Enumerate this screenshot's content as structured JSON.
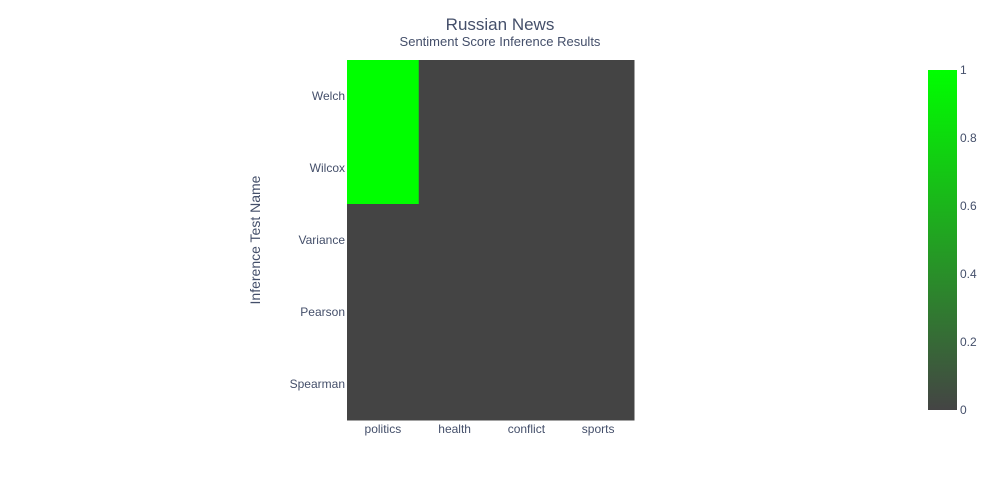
{
  "chart_data": {
    "type": "heatmap",
    "title": "Russian News",
    "subtitle": "Sentiment Score Inference Results",
    "xlabel": "",
    "ylabel": "Inference Test Name",
    "x_categories": [
      "politics",
      "health",
      "conflict",
      "sports"
    ],
    "y_categories": [
      "Welch",
      "Wilcox",
      "Variance",
      "Pearson",
      "Spearman"
    ],
    "z": [
      [
        1,
        0,
        0,
        0
      ],
      [
        1,
        0,
        0,
        0
      ],
      [
        0,
        0,
        0,
        0
      ],
      [
        0,
        0,
        0,
        0
      ],
      [
        0,
        0,
        0,
        0
      ]
    ],
    "colorscale": {
      "min_color": "#444444",
      "max_color": "#00ff00"
    },
    "colorbar": {
      "range": [
        0,
        1
      ],
      "ticks": [
        "0",
        "0.2",
        "0.4",
        "0.6",
        "0.8",
        "1"
      ]
    }
  }
}
